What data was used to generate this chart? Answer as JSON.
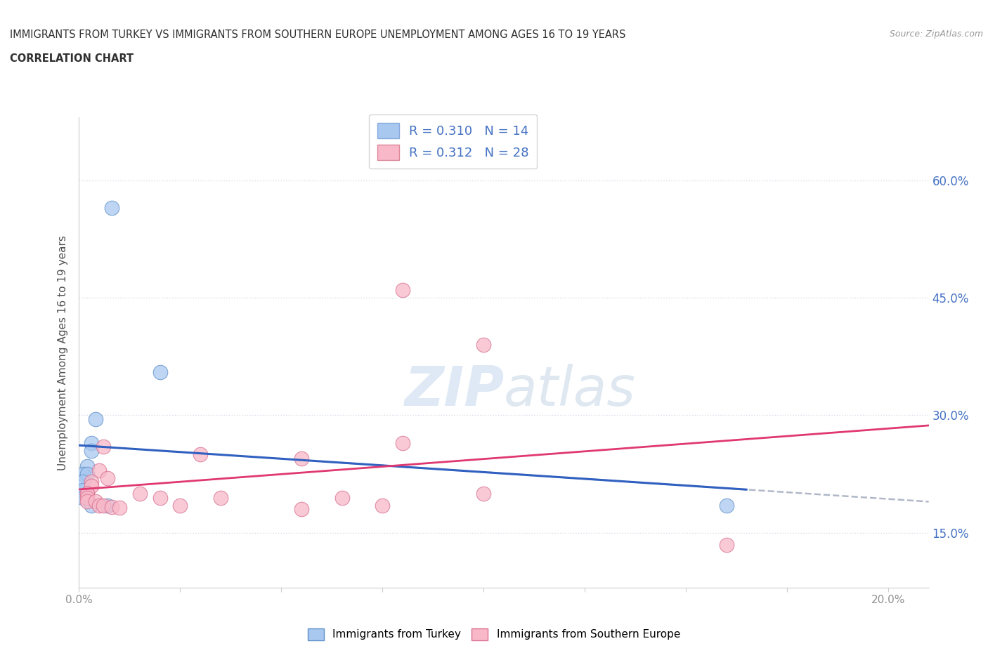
{
  "title_line1": "IMMIGRANTS FROM TURKEY VS IMMIGRANTS FROM SOUTHERN EUROPE UNEMPLOYMENT AMONG AGES 16 TO 19 YEARS",
  "title_line2": "CORRELATION CHART",
  "source_text": "Source: ZipAtlas.com",
  "ylabel": "Unemployment Among Ages 16 to 19 years",
  "xlim": [
    0.0,
    0.21
  ],
  "ylim": [
    0.08,
    0.68
  ],
  "x_ticks": [
    0.0,
    0.025,
    0.05,
    0.075,
    0.1,
    0.125,
    0.15,
    0.175,
    0.2
  ],
  "y_ticks": [
    0.15,
    0.3,
    0.45,
    0.6
  ],
  "y_tick_labels": [
    "15.0%",
    "30.0%",
    "45.0%",
    "60.0%"
  ],
  "watermark": "ZIPatlas",
  "turkey_color": "#a8c8f0",
  "turkey_edge": "#6090c8",
  "se_color": "#f8b8c8",
  "se_edge": "#d87090",
  "turkey_line_color": "#3060c0",
  "se_line_color": "#e03870",
  "dashed_line_color": "#b0b8c8",
  "grid_color": "#d8dde8",
  "background_color": "#ffffff",
  "title_color": "#303030",
  "axis_label_color": "#505050",
  "tick_label_color": "#909090",
  "right_tick_color": "#4472c4",
  "legend_box_color_turkey": "#a8c8f0",
  "legend_box_color_se": "#f8b8c8",
  "turkey_points": [
    [
      0.008,
      0.565
    ],
    [
      0.02,
      0.355
    ],
    [
      0.004,
      0.295
    ],
    [
      0.003,
      0.265
    ],
    [
      0.003,
      0.255
    ],
    [
      0.002,
      0.235
    ],
    [
      0.001,
      0.225
    ],
    [
      0.002,
      0.225
    ],
    [
      0.001,
      0.215
    ],
    [
      0.001,
      0.205
    ],
    [
      0.001,
      0.195
    ],
    [
      0.003,
      0.185
    ],
    [
      0.007,
      0.185
    ],
    [
      0.16,
      0.185
    ]
  ],
  "se_points": [
    [
      0.08,
      0.46
    ],
    [
      0.1,
      0.39
    ],
    [
      0.006,
      0.26
    ],
    [
      0.03,
      0.25
    ],
    [
      0.055,
      0.245
    ],
    [
      0.08,
      0.265
    ],
    [
      0.005,
      0.23
    ],
    [
      0.007,
      0.22
    ],
    [
      0.003,
      0.215
    ],
    [
      0.003,
      0.21
    ],
    [
      0.002,
      0.2
    ],
    [
      0.002,
      0.2
    ],
    [
      0.002,
      0.195
    ],
    [
      0.002,
      0.19
    ],
    [
      0.004,
      0.19
    ],
    [
      0.005,
      0.185
    ],
    [
      0.006,
      0.185
    ],
    [
      0.008,
      0.183
    ],
    [
      0.01,
      0.182
    ],
    [
      0.015,
      0.2
    ],
    [
      0.02,
      0.195
    ],
    [
      0.025,
      0.185
    ],
    [
      0.035,
      0.195
    ],
    [
      0.055,
      0.18
    ],
    [
      0.065,
      0.195
    ],
    [
      0.075,
      0.185
    ],
    [
      0.1,
      0.2
    ],
    [
      0.16,
      0.135
    ]
  ],
  "turkey_R": 0.31,
  "turkey_N": 14,
  "se_R": 0.312,
  "se_N": 28
}
